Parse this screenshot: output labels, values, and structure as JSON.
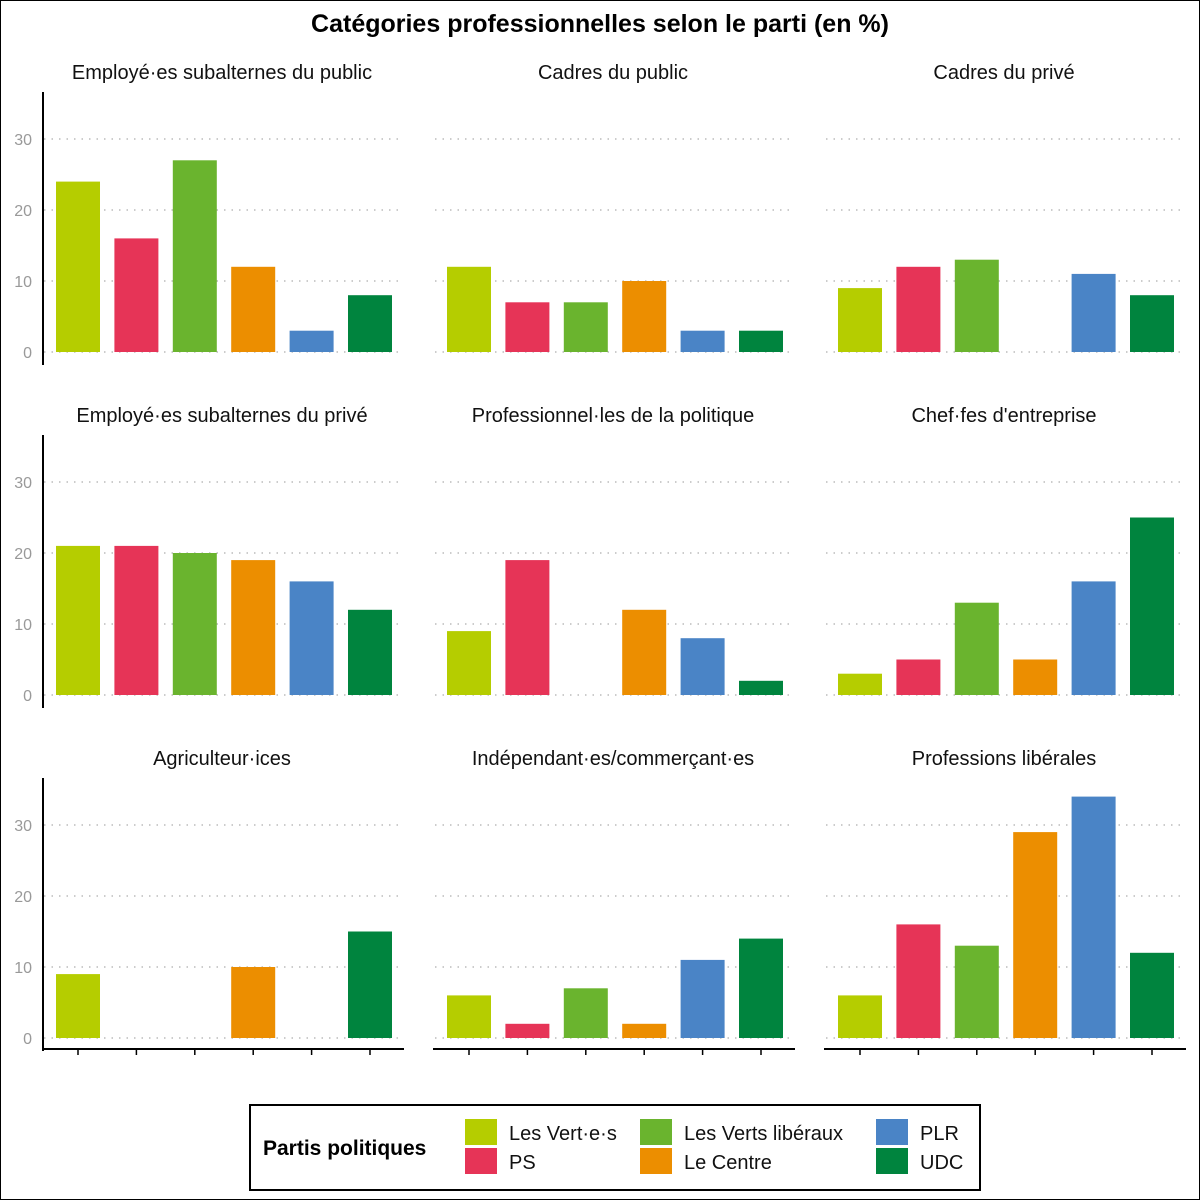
{
  "chart_data": {
    "type": "bar",
    "title": "Catégories professionnelles selon le parti (en %)",
    "xlabel": "",
    "ylabel": "",
    "ylim": [
      0,
      36
    ],
    "yticks": [
      0,
      10,
      20,
      30
    ],
    "grid": "horizontal dotted",
    "legend": {
      "title": "Partis politiques",
      "placement": "bottom"
    },
    "categories": [
      "Les Vert·e·s",
      "PS",
      "Les Verts libéraux",
      "Le Centre",
      "PLR",
      "UDC"
    ],
    "colors": [
      "#b5cd00",
      "#e63457",
      "#6ab42e",
      "#ec8e00",
      "#4a84c6",
      "#00843e"
    ],
    "panels": [
      {
        "title": "Employé·es subalternes du public",
        "values": [
          24,
          16,
          27,
          12,
          3,
          8
        ]
      },
      {
        "title": "Cadres du public",
        "values": [
          12,
          7,
          7,
          10,
          3,
          3
        ]
      },
      {
        "title": "Cadres du privé",
        "values": [
          9,
          12,
          13,
          0,
          11,
          8
        ]
      },
      {
        "title": "Employé·es subalternes du privé",
        "values": [
          21,
          21,
          20,
          19,
          16,
          12
        ]
      },
      {
        "title": "Professionnel·les de la politique",
        "values": [
          9,
          19,
          0,
          12,
          8,
          2
        ]
      },
      {
        "title": "Chef·fes d'entreprise",
        "values": [
          3,
          5,
          13,
          5,
          16,
          25
        ]
      },
      {
        "title": "Agriculteur·ices",
        "values": [
          9,
          0,
          0,
          10,
          0,
          15
        ]
      },
      {
        "title": "Indépendant·es/commerçant·es",
        "values": [
          6,
          2,
          7,
          2,
          11,
          14
        ]
      },
      {
        "title": "Professions libérales",
        "values": [
          6,
          16,
          13,
          29,
          34,
          12
        ]
      }
    ]
  }
}
